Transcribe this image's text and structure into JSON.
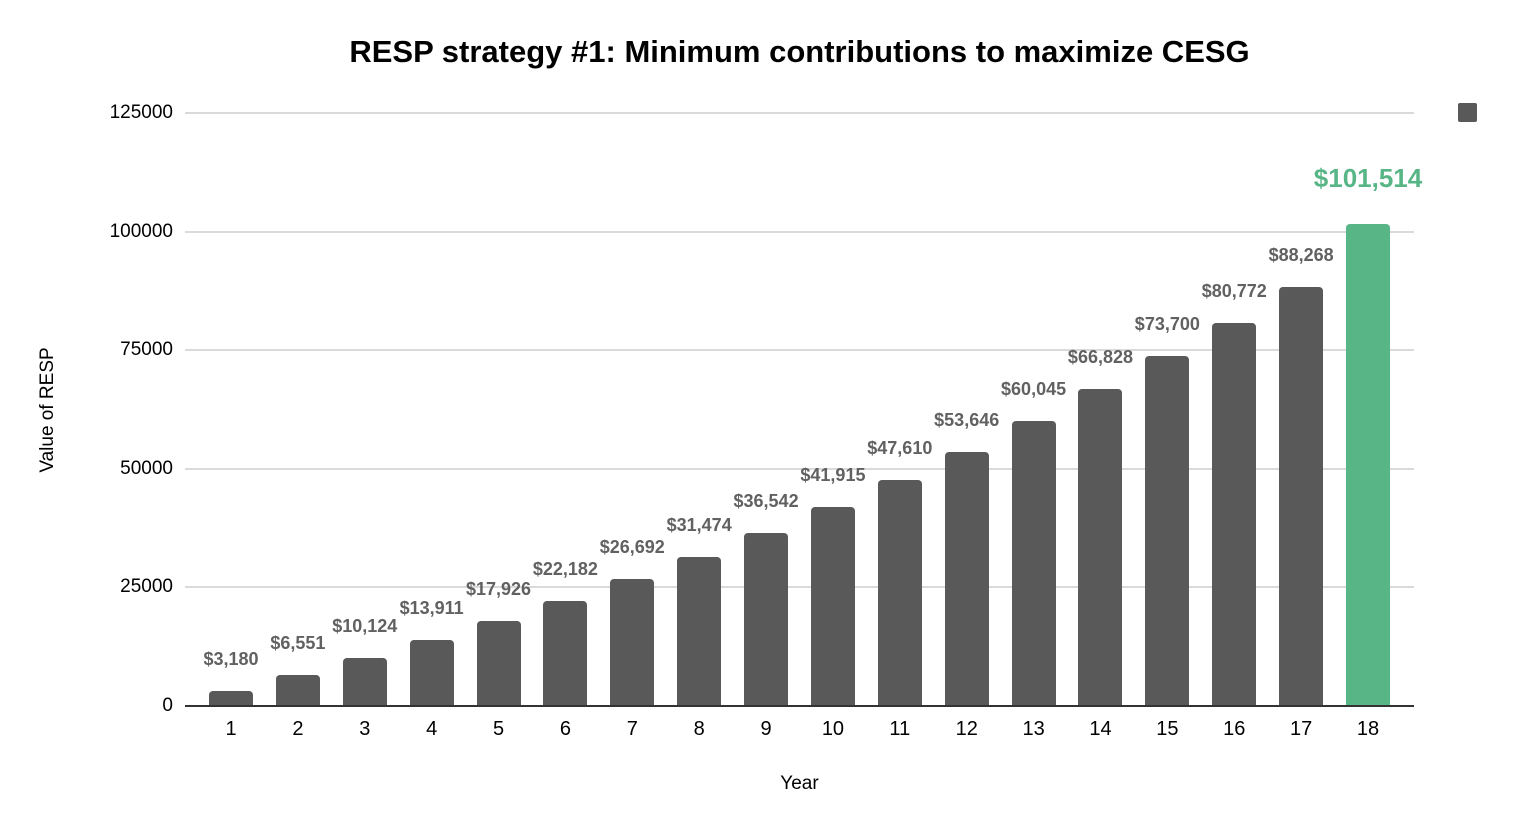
{
  "chart_data": {
    "type": "bar",
    "title": "RESP strategy #1: Minimum contributions to maximize CESG",
    "xlabel": "Year",
    "ylabel": "Value of RESP",
    "ylim": [
      0,
      125000
    ],
    "yticks": [
      0,
      25000,
      50000,
      75000,
      100000,
      125000
    ],
    "ytick_labels": [
      "0",
      "25000",
      "50000",
      "75000",
      "100000",
      "125000"
    ],
    "grid": true,
    "legend_position": "top-right",
    "categories": [
      "1",
      "2",
      "3",
      "4",
      "5",
      "6",
      "7",
      "8",
      "9",
      "10",
      "11",
      "12",
      "13",
      "14",
      "15",
      "16",
      "17",
      "18"
    ],
    "values": [
      3180,
      6551,
      10124,
      13911,
      17926,
      22182,
      26692,
      31474,
      36542,
      41915,
      47610,
      53646,
      60045,
      66828,
      73700,
      80772,
      88268,
      101514
    ],
    "value_labels": [
      "$3,180",
      "$6,551",
      "$10,124",
      "$13,911",
      "$17,926",
      "$22,182",
      "$26,692",
      "$31,474",
      "$36,542",
      "$41,915",
      "$47,610",
      "$53,646",
      "$60,045",
      "$66,828",
      "$73,700",
      "$80,772",
      "$88,268",
      "$101,514"
    ],
    "bar_color": "#595959",
    "highlight_index": 17,
    "highlight_color": "#57B586",
    "label_color": "#616161",
    "highlight_label_color": "#57B586",
    "gridline_color": "#dadada",
    "baseline_color": "#333333"
  },
  "legend": {
    "swatch_color": "#595959"
  }
}
